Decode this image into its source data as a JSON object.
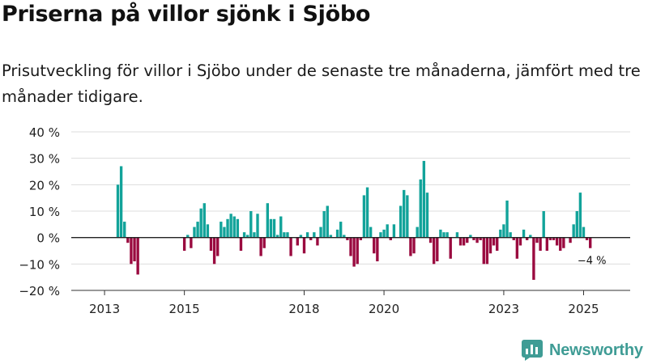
{
  "title": "Priserna på villor sjönk i Sjöbo",
  "subtitle": "Prisutveckling för villor i Sjöbo under de senaste tre månaderna, jämfört med tre månader tidigare.",
  "brand": {
    "name": "Newsworthy",
    "icon": "newsworthy-logo-icon"
  },
  "colors": {
    "positive": "#12a39a",
    "negative": "#9a0a3f",
    "grid": "#dddddd",
    "axis": "#333333",
    "brand": "#3f9c95"
  },
  "chart_data": {
    "type": "bar",
    "title": "Priserna på villor sjönk i Sjöbo",
    "ylabel": "",
    "xlabel": "",
    "ylim": [
      -20,
      40
    ],
    "grid": true,
    "y_ticks": [
      {
        "value": 40,
        "label": "40 %"
      },
      {
        "value": 30,
        "label": "30 %"
      },
      {
        "value": 20,
        "label": "20 %"
      },
      {
        "value": 10,
        "label": "10 %"
      },
      {
        "value": 0,
        "label": "0 %"
      },
      {
        "value": -10,
        "label": "−10 %"
      },
      {
        "value": -20,
        "label": "−20 %"
      }
    ],
    "x_ticks": [
      {
        "date": "2013-01",
        "label": "2013"
      },
      {
        "date": "2015-01",
        "label": "2015"
      },
      {
        "date": "2018-01",
        "label": "2018"
      },
      {
        "date": "2020-01",
        "label": "2020"
      },
      {
        "date": "2023-01",
        "label": "2023"
      },
      {
        "date": "2025-01",
        "label": "2025"
      }
    ],
    "x_start": "2012-03",
    "x_end": "2026-03",
    "end_annotation": "−4 %",
    "series": [
      {
        "name": "Prisutveckling",
        "points": [
          [
            "2013-05",
            20
          ],
          [
            "2013-06",
            27
          ],
          [
            "2013-07",
            6
          ],
          [
            "2013-08",
            -2
          ],
          [
            "2013-09",
            -10
          ],
          [
            "2013-10",
            -9
          ],
          [
            "2013-11",
            -14
          ],
          [
            "2015-01",
            -5
          ],
          [
            "2015-02",
            1
          ],
          [
            "2015-03",
            -4
          ],
          [
            "2015-04",
            4
          ],
          [
            "2015-05",
            6
          ],
          [
            "2015-06",
            11
          ],
          [
            "2015-07",
            13
          ],
          [
            "2015-08",
            5
          ],
          [
            "2015-09",
            -5
          ],
          [
            "2015-10",
            -10
          ],
          [
            "2015-11",
            -7
          ],
          [
            "2015-12",
            6
          ],
          [
            "2016-01",
            4
          ],
          [
            "2016-02",
            7
          ],
          [
            "2016-03",
            9
          ],
          [
            "2016-04",
            8
          ],
          [
            "2016-05",
            7
          ],
          [
            "2016-06",
            -5
          ],
          [
            "2016-07",
            2
          ],
          [
            "2016-08",
            1
          ],
          [
            "2016-09",
            10
          ],
          [
            "2016-10",
            2
          ],
          [
            "2016-11",
            9
          ],
          [
            "2016-12",
            -7
          ],
          [
            "2017-01",
            -4
          ],
          [
            "2017-02",
            13
          ],
          [
            "2017-03",
            7
          ],
          [
            "2017-04",
            7
          ],
          [
            "2017-05",
            1
          ],
          [
            "2017-06",
            8
          ],
          [
            "2017-07",
            2
          ],
          [
            "2017-08",
            2
          ],
          [
            "2017-09",
            -7
          ],
          [
            "2017-10",
            0
          ],
          [
            "2017-11",
            -3
          ],
          [
            "2017-12",
            1
          ],
          [
            "2018-01",
            -6
          ],
          [
            "2018-02",
            2
          ],
          [
            "2018-03",
            -1
          ],
          [
            "2018-04",
            2
          ],
          [
            "2018-05",
            -3
          ],
          [
            "2018-06",
            4
          ],
          [
            "2018-07",
            10
          ],
          [
            "2018-08",
            12
          ],
          [
            "2018-09",
            1
          ],
          [
            "2018-10",
            0
          ],
          [
            "2018-11",
            3
          ],
          [
            "2018-12",
            6
          ],
          [
            "2019-01",
            1
          ],
          [
            "2019-02",
            -1
          ],
          [
            "2019-03",
            -7
          ],
          [
            "2019-04",
            -11
          ],
          [
            "2019-05",
            -10
          ],
          [
            "2019-06",
            -1
          ],
          [
            "2019-07",
            16
          ],
          [
            "2019-08",
            19
          ],
          [
            "2019-09",
            4
          ],
          [
            "2019-10",
            -6
          ],
          [
            "2019-11",
            -9
          ],
          [
            "2019-12",
            2
          ],
          [
            "2020-01",
            3
          ],
          [
            "2020-02",
            5
          ],
          [
            "2020-03",
            -1
          ],
          [
            "2020-04",
            5
          ],
          [
            "2020-05",
            0
          ],
          [
            "2020-06",
            12
          ],
          [
            "2020-07",
            18
          ],
          [
            "2020-08",
            16
          ],
          [
            "2020-09",
            -7
          ],
          [
            "2020-10",
            -6
          ],
          [
            "2020-11",
            4
          ],
          [
            "2020-12",
            22
          ],
          [
            "2021-01",
            29
          ],
          [
            "2021-02",
            17
          ],
          [
            "2021-03",
            -2
          ],
          [
            "2021-04",
            -10
          ],
          [
            "2021-05",
            -9
          ],
          [
            "2021-06",
            3
          ],
          [
            "2021-07",
            2
          ],
          [
            "2021-08",
            2
          ],
          [
            "2021-09",
            -8
          ],
          [
            "2021-10",
            0
          ],
          [
            "2021-11",
            2
          ],
          [
            "2021-12",
            -3
          ],
          [
            "2022-01",
            -3
          ],
          [
            "2022-02",
            -2
          ],
          [
            "2022-03",
            1
          ],
          [
            "2022-04",
            -1
          ],
          [
            "2022-05",
            -2
          ],
          [
            "2022-06",
            -1
          ],
          [
            "2022-07",
            -10
          ],
          [
            "2022-08",
            -10
          ],
          [
            "2022-09",
            -6
          ],
          [
            "2022-10",
            -3
          ],
          [
            "2022-11",
            -5
          ],
          [
            "2022-12",
            3
          ],
          [
            "2023-01",
            5
          ],
          [
            "2023-02",
            14
          ],
          [
            "2023-03",
            2
          ],
          [
            "2023-04",
            -1
          ],
          [
            "2023-05",
            -8
          ],
          [
            "2023-06",
            -3
          ],
          [
            "2023-07",
            3
          ],
          [
            "2023-08",
            -1
          ],
          [
            "2023-09",
            1
          ],
          [
            "2023-10",
            -16
          ],
          [
            "2023-11",
            -2
          ],
          [
            "2023-12",
            -5
          ],
          [
            "2024-01",
            10
          ],
          [
            "2024-02",
            -5
          ],
          [
            "2024-03",
            -1
          ],
          [
            "2024-04",
            -1
          ],
          [
            "2024-05",
            -3
          ],
          [
            "2024-06",
            -5
          ],
          [
            "2024-07",
            -4
          ],
          [
            "2024-08",
            0
          ],
          [
            "2024-09",
            -2
          ],
          [
            "2024-10",
            5
          ],
          [
            "2024-11",
            10
          ],
          [
            "2024-12",
            17
          ],
          [
            "2025-01",
            4
          ],
          [
            "2025-02",
            -1
          ],
          [
            "2025-03",
            -4
          ]
        ]
      }
    ]
  }
}
